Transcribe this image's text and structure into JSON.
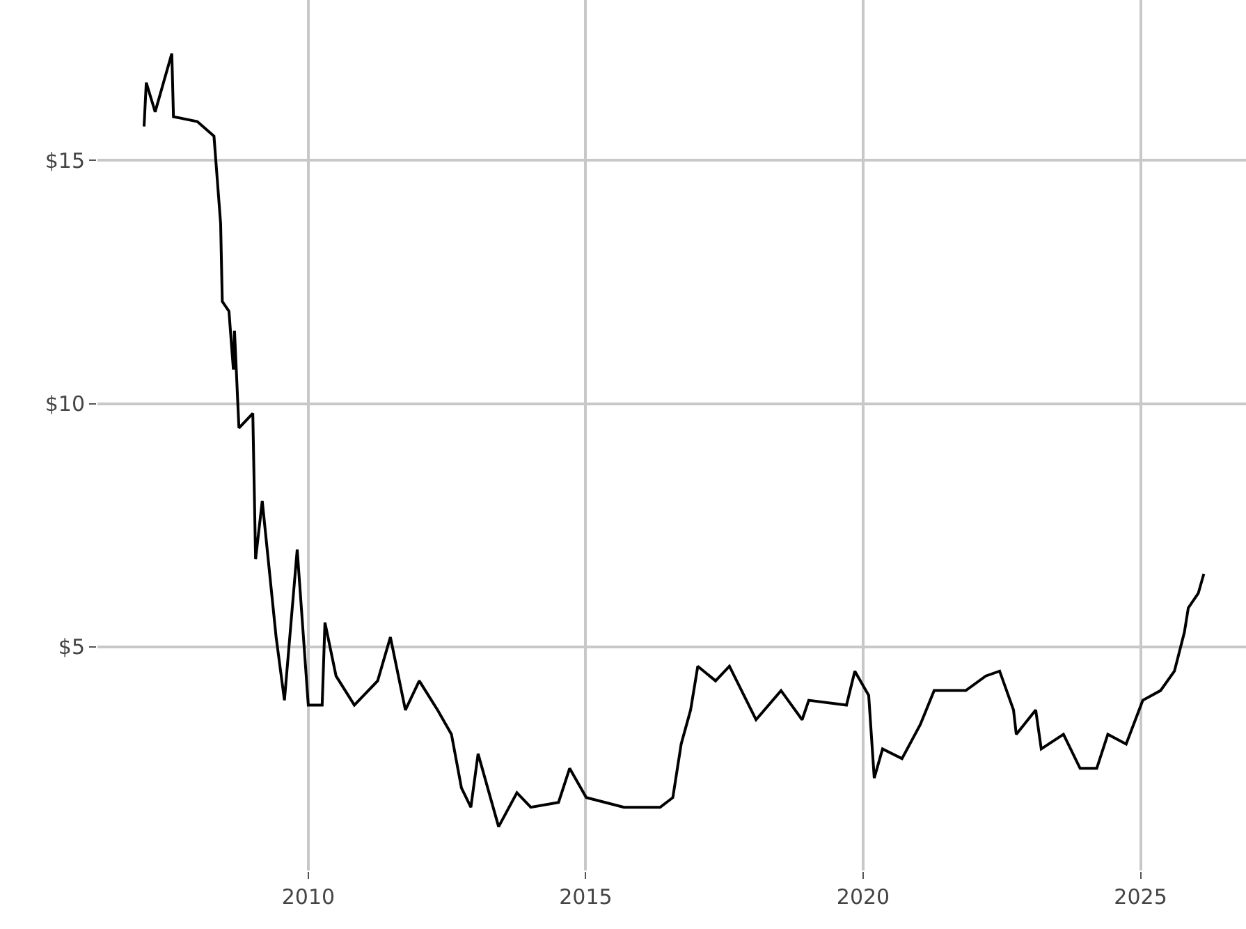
{
  "chart_data": {
    "type": "line",
    "x": [
      2007.04,
      2007.08,
      2007.24,
      2007.54,
      2007.57,
      2008.0,
      2008.3,
      2008.42,
      2008.45,
      2008.57,
      2008.65,
      2008.67,
      2008.75,
      2009.0,
      2009.05,
      2009.17,
      2009.42,
      2009.57,
      2009.8,
      2010.0,
      2010.25,
      2010.3,
      2010.5,
      2010.83,
      2011.25,
      2011.48,
      2011.75,
      2012.0,
      2012.33,
      2012.58,
      2012.76,
      2012.93,
      2013.06,
      2013.43,
      2013.76,
      2014.01,
      2014.51,
      2014.71,
      2015.01,
      2015.69,
      2016.34,
      2016.57,
      2016.72,
      2016.89,
      2017.02,
      2017.34,
      2017.59,
      2018.07,
      2018.52,
      2018.9,
      2019.02,
      2019.7,
      2019.85,
      2020.1,
      2020.2,
      2020.35,
      2020.7,
      2021.03,
      2021.28,
      2021.85,
      2022.21,
      2022.46,
      2022.71,
      2022.76,
      2023.11,
      2023.21,
      2023.61,
      2023.91,
      2024.21,
      2024.41,
      2024.74,
      2025.04,
      2025.36,
      2025.61,
      2025.79,
      2025.86,
      2026.04,
      2026.14
    ],
    "series": [
      {
        "color": "#000000",
        "values": [
          15.7,
          16.6,
          16.0,
          17.2,
          15.9,
          15.8,
          15.5,
          13.7,
          12.1,
          11.9,
          10.7,
          11.5,
          9.5,
          9.8,
          6.8,
          8.0,
          5.2,
          3.9,
          7.0,
          3.8,
          3.8,
          5.5,
          4.4,
          3.8,
          4.3,
          5.2,
          3.7,
          4.3,
          3.7,
          3.2,
          2.1,
          1.7,
          2.8,
          1.3,
          2.0,
          1.7,
          1.8,
          2.5,
          1.9,
          1.7,
          1.7,
          1.9,
          3.0,
          3.7,
          4.6,
          4.3,
          4.6,
          3.5,
          4.1,
          3.5,
          3.9,
          3.8,
          4.5,
          4.0,
          2.3,
          2.9,
          2.7,
          3.4,
          4.1,
          4.1,
          4.4,
          4.5,
          3.7,
          3.2,
          3.7,
          2.9,
          3.2,
          2.5,
          2.5,
          3.2,
          3.0,
          3.9,
          4.1,
          4.5,
          5.3,
          5.8,
          6.1,
          6.5
        ]
      }
    ],
    "xlim": [
      2006.2,
      2026.9
    ],
    "ylim": [
      0.4,
      18.3
    ],
    "xticks": [
      2010,
      2015,
      2020,
      2025
    ],
    "yticks": [
      {
        "value": 5,
        "label": "$5"
      },
      {
        "value": 10,
        "label": "$10"
      },
      {
        "value": 15,
        "label": "$15"
      }
    ],
    "grid": true,
    "marker": "none",
    "line_style": "solid"
  }
}
